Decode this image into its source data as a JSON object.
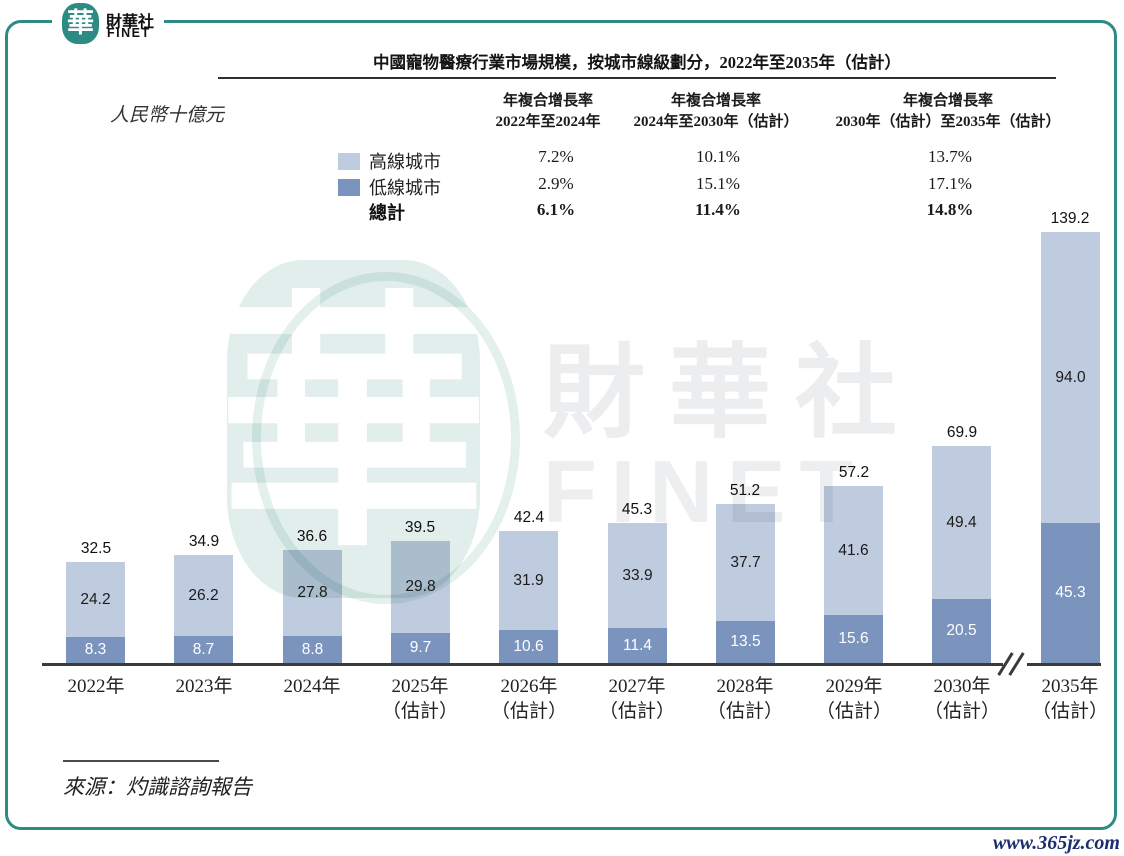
{
  "brand": {
    "logo_char": "華",
    "logo_name": "財華社",
    "logo_sub": "FINET",
    "teal": "#2E8B84"
  },
  "watermark": {
    "big_char": "華",
    "text1": "財華社",
    "text2": "FINET"
  },
  "footer": {
    "source": "來源：灼識諮詢報告",
    "url": "www.365jz.com"
  },
  "chart_data": {
    "type": "bar",
    "stacked": true,
    "title": "中國寵物醫療行業市場規模，按城市線級劃分，2022年至2035年（估計）",
    "unit_label": "人民幣十億元",
    "legend_position": "top",
    "grid": false,
    "axis_break_between": [
      "2030年（估計）",
      "2035年（估計）"
    ],
    "categories": [
      "2022年",
      "2023年",
      "2024年",
      "2025年\n（估計）",
      "2026年\n（估計）",
      "2027年\n（估計）",
      "2028年\n（估計）",
      "2029年\n（估計）",
      "2030年\n（估計）",
      "2035年\n（估計）"
    ],
    "series": [
      {
        "name": "高線城市",
        "color": "#BFCBDE",
        "values": [
          24.2,
          26.2,
          27.8,
          29.8,
          31.9,
          33.9,
          37.7,
          41.6,
          49.4,
          94.0
        ]
      },
      {
        "name": "低線城市",
        "color": "#7A94BE",
        "values": [
          8.3,
          8.7,
          8.8,
          9.7,
          10.6,
          11.4,
          13.5,
          15.6,
          20.5,
          45.3
        ]
      }
    ],
    "totals": [
      32.5,
      34.9,
      36.6,
      39.5,
      42.4,
      45.3,
      51.2,
      57.2,
      69.9,
      139.2
    ],
    "cagr": {
      "total_row_label": "總計",
      "columns": [
        {
          "line1": "年複合增長率",
          "line2": "2022年至2024年",
          "values": [
            "7.2%",
            "2.9%"
          ],
          "total_value": "6.1%"
        },
        {
          "line1": "年複合增長率",
          "line2": "2024年至2030年（估計）",
          "values": [
            "10.1%",
            "15.1%"
          ],
          "total_value": "11.4%"
        },
        {
          "line1": "年複合增長率",
          "line2": "2030年（估計）至2035年（估計）",
          "values": [
            "13.7%",
            "17.1%"
          ],
          "total_value": "14.8%"
        }
      ]
    }
  }
}
